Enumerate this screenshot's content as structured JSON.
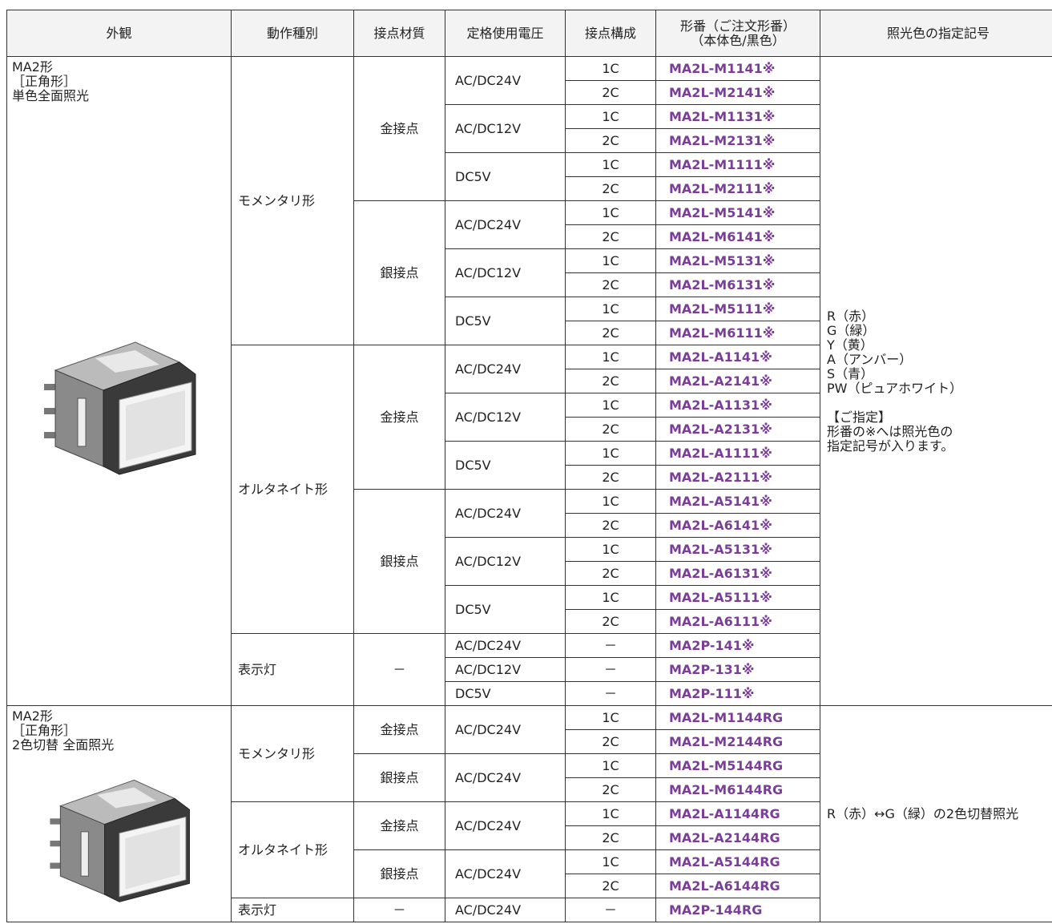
{
  "header": [
    "外観",
    "動作種別",
    "接点材質",
    "定格使用電圧",
    "接点構成",
    [
      "形番（ご注文形番）",
      "（本体色/黒色）"
    ],
    "照光色の指定記号"
  ],
  "sections": [
    {
      "appearance": [
        "MA2形",
        "［正角形］",
        "単色全面照光"
      ],
      "color_spec": [
        [
          "R（赤）",
          "G（緑）",
          "Y（黄）",
          "A（アンバー）",
          "S（青）",
          "PW（ピュアホワイト）"
        ],
        [
          "【ご指定】",
          "形番の※へは照光色の",
          "指定記号が入ります。"
        ]
      ],
      "types": [
        {
          "name": "モメンタリ形",
          "materials": [
            {
              "name": "金接点",
              "voltages": [
                {
                  "name": "AC/DC24V",
                  "rows": [
                    [
                      "1C",
                      "MA2L-M1141※"
                    ],
                    [
                      "2C",
                      "MA2L-M2141※"
                    ]
                  ]
                },
                {
                  "name": "AC/DC12V",
                  "rows": [
                    [
                      "1C",
                      "MA2L-M1131※"
                    ],
                    [
                      "2C",
                      "MA2L-M2131※"
                    ]
                  ]
                },
                {
                  "name": "DC5V",
                  "rows": [
                    [
                      "1C",
                      "MA2L-M1111※"
                    ],
                    [
                      "2C",
                      "MA2L-M2111※"
                    ]
                  ]
                }
              ]
            },
            {
              "name": "銀接点",
              "voltages": [
                {
                  "name": "AC/DC24V",
                  "rows": [
                    [
                      "1C",
                      "MA2L-M5141※"
                    ],
                    [
                      "2C",
                      "MA2L-M6141※"
                    ]
                  ]
                },
                {
                  "name": "AC/DC12V",
                  "rows": [
                    [
                      "1C",
                      "MA2L-M5131※"
                    ],
                    [
                      "2C",
                      "MA2L-M6131※"
                    ]
                  ]
                },
                {
                  "name": "DC5V",
                  "rows": [
                    [
                      "1C",
                      "MA2L-M5111※"
                    ],
                    [
                      "2C",
                      "MA2L-M6111※"
                    ]
                  ]
                }
              ]
            }
          ]
        },
        {
          "name": "オルタネイト形",
          "materials": [
            {
              "name": "金接点",
              "voltages": [
                {
                  "name": "AC/DC24V",
                  "rows": [
                    [
                      "1C",
                      "MA2L-A1141※"
                    ],
                    [
                      "2C",
                      "MA2L-A2141※"
                    ]
                  ]
                },
                {
                  "name": "AC/DC12V",
                  "rows": [
                    [
                      "1C",
                      "MA2L-A1131※"
                    ],
                    [
                      "2C",
                      "MA2L-A2131※"
                    ]
                  ]
                },
                {
                  "name": "DC5V",
                  "rows": [
                    [
                      "1C",
                      "MA2L-A1111※"
                    ],
                    [
                      "2C",
                      "MA2L-A2111※"
                    ]
                  ]
                }
              ]
            },
            {
              "name": "銀接点",
              "voltages": [
                {
                  "name": "AC/DC24V",
                  "rows": [
                    [
                      "1C",
                      "MA2L-A5141※"
                    ],
                    [
                      "2C",
                      "MA2L-A6141※"
                    ]
                  ]
                },
                {
                  "name": "AC/DC12V",
                  "rows": [
                    [
                      "1C",
                      "MA2L-A5131※"
                    ],
                    [
                      "2C",
                      "MA2L-A6131※"
                    ]
                  ]
                },
                {
                  "name": "DC5V",
                  "rows": [
                    [
                      "1C",
                      "MA2L-A5111※"
                    ],
                    [
                      "2C",
                      "MA2L-A6111※"
                    ]
                  ]
                }
              ]
            }
          ]
        },
        {
          "name": "表示灯",
          "materials": [
            {
              "name": "－",
              "voltages": [
                {
                  "name": "AC/DC24V",
                  "rows": [
                    [
                      "－",
                      "MA2P-141※"
                    ]
                  ]
                },
                {
                  "name": "AC/DC12V",
                  "rows": [
                    [
                      "－",
                      "MA2P-131※"
                    ]
                  ]
                },
                {
                  "name": "DC5V",
                  "rows": [
                    [
                      "－",
                      "MA2P-111※"
                    ]
                  ]
                }
              ]
            }
          ]
        }
      ]
    },
    {
      "appearance": [
        "MA2形",
        "［正角形］",
        "2色切替 全面照光"
      ],
      "color_spec": [
        [
          "R（赤）↔G（緑）の2色切替照光"
        ]
      ],
      "types": [
        {
          "name": "モメンタリ形",
          "materials": [
            {
              "name": "金接点",
              "voltages": [
                {
                  "name": "AC/DC24V",
                  "rows": [
                    [
                      "1C",
                      "MA2L-M1144RG"
                    ],
                    [
                      "2C",
                      "MA2L-M2144RG"
                    ]
                  ]
                }
              ]
            },
            {
              "name": "銀接点",
              "voltages": [
                {
                  "name": "AC/DC24V",
                  "rows": [
                    [
                      "1C",
                      "MA2L-M5144RG"
                    ],
                    [
                      "2C",
                      "MA2L-M6144RG"
                    ]
                  ]
                }
              ]
            }
          ]
        },
        {
          "name": "オルタネイト形",
          "materials": [
            {
              "name": "金接点",
              "voltages": [
                {
                  "name": "AC/DC24V",
                  "rows": [
                    [
                      "1C",
                      "MA2L-A1144RG"
                    ],
                    [
                      "2C",
                      "MA2L-A2144RG"
                    ]
                  ]
                }
              ]
            },
            {
              "name": "銀接点",
              "voltages": [
                {
                  "name": "AC/DC24V",
                  "rows": [
                    [
                      "1C",
                      "MA2L-A5144RG"
                    ],
                    [
                      "2C",
                      "MA2L-A6144RG"
                    ]
                  ]
                }
              ]
            }
          ]
        },
        {
          "name": "表示灯",
          "materials": [
            {
              "name": "－",
              "voltages": [
                {
                  "name": "AC/DC24V",
                  "rows": [
                    [
                      "－",
                      "MA2P-144RG"
                    ]
                  ]
                }
              ]
            }
          ]
        }
      ]
    }
  ]
}
